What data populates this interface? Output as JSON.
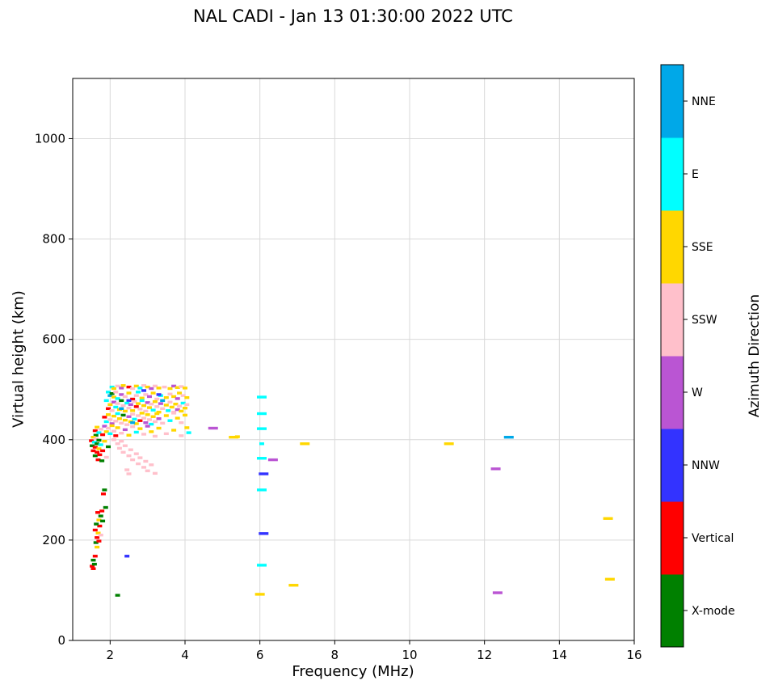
{
  "chart": {
    "title": "NAL CADI - Jan 13 01:30:00 2022 UTC",
    "xlabel": "Frequency (MHz)",
    "ylabel": "Virtual height (km)",
    "colorbar_label": "Azimuth Direction"
  },
  "chart_data": {
    "type": "scatter",
    "title": "NAL CADI - Jan 13 01:30:00 2022 UTC",
    "xlabel": "Frequency (MHz)",
    "ylabel": "Virtual height (km)",
    "xlim": [
      1,
      16
    ],
    "ylim": [
      0,
      1120
    ],
    "xticks": [
      2,
      4,
      6,
      8,
      10,
      12,
      14,
      16
    ],
    "yticks": [
      0,
      200,
      400,
      600,
      800,
      1000
    ],
    "grid": true,
    "grid_color": "#d9d9d9",
    "legend": {
      "type": "colorbar",
      "position": "right",
      "title": "Azimuth Direction"
    },
    "directions": [
      {
        "name": "X-mode",
        "color": "#008000"
      },
      {
        "name": "Vertical",
        "color": "#ff0000"
      },
      {
        "name": "NNW",
        "color": "#3333ff"
      },
      {
        "name": "W",
        "color": "#ba55d3"
      },
      {
        "name": "SSW",
        "color": "#ffc0cb"
      },
      {
        "name": "SSE",
        "color": "#ffd700"
      },
      {
        "name": "E",
        "color": "#00ffff"
      },
      {
        "name": "NNE",
        "color": "#00a8e8"
      }
    ],
    "points_format": [
      "freq_MHz",
      "height_km",
      "dir_index",
      "wide_dash"
    ],
    "points": [
      [
        2.05,
        505,
        6
      ],
      [
        2.1,
        502,
        5
      ],
      [
        2.2,
        507,
        4
      ],
      [
        2.3,
        503,
        3
      ],
      [
        2.35,
        508,
        5
      ],
      [
        2.5,
        505,
        1
      ],
      [
        2.6,
        502,
        4
      ],
      [
        2.7,
        507,
        5
      ],
      [
        2.8,
        503,
        6
      ],
      [
        2.9,
        508,
        4
      ],
      [
        3.0,
        505,
        5
      ],
      [
        3.1,
        502,
        3
      ],
      [
        3.2,
        507,
        4
      ],
      [
        3.3,
        503,
        5
      ],
      [
        3.45,
        505,
        4
      ],
      [
        3.6,
        502,
        5
      ],
      [
        3.7,
        507,
        3
      ],
      [
        3.8,
        504,
        5
      ],
      [
        3.9,
        506,
        4
      ],
      [
        4.0,
        503,
        5
      ],
      [
        1.95,
        495,
        6
      ],
      [
        2.0,
        488,
        7
      ],
      [
        2.05,
        492,
        0
      ],
      [
        2.1,
        485,
        5
      ],
      [
        2.15,
        495,
        4
      ],
      [
        2.2,
        482,
        6
      ],
      [
        2.3,
        490,
        3
      ],
      [
        2.4,
        486,
        4
      ],
      [
        2.5,
        493,
        5
      ],
      [
        2.6,
        481,
        1
      ],
      [
        2.7,
        488,
        4
      ],
      [
        2.75,
        495,
        6
      ],
      [
        2.85,
        483,
        5
      ],
      [
        2.95,
        490,
        4
      ],
      [
        3.05,
        486,
        3
      ],
      [
        3.15,
        493,
        5
      ],
      [
        3.25,
        481,
        4
      ],
      [
        3.35,
        488,
        6
      ],
      [
        3.5,
        484,
        5
      ],
      [
        3.6,
        491,
        4
      ],
      [
        3.7,
        486,
        5
      ],
      [
        3.8,
        482,
        3
      ],
      [
        3.85,
        493,
        5
      ],
      [
        3.95,
        488,
        4
      ],
      [
        4.05,
        484,
        5
      ],
      [
        2.5,
        478,
        2
      ],
      [
        3.3,
        490,
        2
      ],
      [
        2.9,
        498,
        2
      ],
      [
        1.9,
        478,
        6
      ],
      [
        1.95,
        462,
        1
      ],
      [
        2.0,
        470,
        5
      ],
      [
        2.05,
        458,
        4
      ],
      [
        2.1,
        475,
        3
      ],
      [
        2.15,
        465,
        6
      ],
      [
        2.2,
        472,
        4
      ],
      [
        2.25,
        460,
        5
      ],
      [
        2.3,
        478,
        0
      ],
      [
        2.35,
        468,
        4
      ],
      [
        2.4,
        457,
        5
      ],
      [
        2.45,
        473,
        6
      ],
      [
        2.5,
        463,
        4
      ],
      [
        2.55,
        470,
        3
      ],
      [
        2.6,
        458,
        5
      ],
      [
        2.65,
        476,
        4
      ],
      [
        2.7,
        466,
        1
      ],
      [
        2.75,
        472,
        5
      ],
      [
        2.8,
        461,
        4
      ],
      [
        2.85,
        478,
        6
      ],
      [
        2.9,
        468,
        5
      ],
      [
        2.95,
        457,
        4
      ],
      [
        3.0,
        474,
        3
      ],
      [
        3.05,
        464,
        5
      ],
      [
        3.1,
        471,
        4
      ],
      [
        3.15,
        459,
        6
      ],
      [
        3.2,
        476,
        5
      ],
      [
        3.25,
        466,
        4
      ],
      [
        3.3,
        455,
        5
      ],
      [
        3.35,
        472,
        3
      ],
      [
        3.4,
        462,
        4
      ],
      [
        3.5,
        469,
        5
      ],
      [
        3.55,
        458,
        6
      ],
      [
        3.6,
        475,
        4
      ],
      [
        3.65,
        465,
        5
      ],
      [
        3.7,
        455,
        4
      ],
      [
        3.75,
        471,
        5
      ],
      [
        3.8,
        460,
        3
      ],
      [
        3.85,
        467,
        4
      ],
      [
        3.9,
        457,
        5
      ],
      [
        3.95,
        473,
        6
      ],
      [
        4.0,
        463,
        5
      ],
      [
        4.05,
        470,
        4
      ],
      [
        2.3,
        462,
        7
      ],
      [
        3.4,
        478,
        7
      ],
      [
        1.85,
        445,
        1
      ],
      [
        1.9,
        436,
        6
      ],
      [
        1.95,
        450,
        5
      ],
      [
        2.0,
        440,
        4
      ],
      [
        2.05,
        432,
        3
      ],
      [
        2.1,
        447,
        5
      ],
      [
        2.15,
        437,
        4
      ],
      [
        2.2,
        452,
        6
      ],
      [
        2.25,
        442,
        5
      ],
      [
        2.3,
        433,
        4
      ],
      [
        2.35,
        449,
        0
      ],
      [
        2.4,
        439,
        5
      ],
      [
        2.45,
        430,
        4
      ],
      [
        2.5,
        446,
        3
      ],
      [
        2.55,
        436,
        5
      ],
      [
        2.6,
        451,
        4
      ],
      [
        2.65,
        441,
        6
      ],
      [
        2.7,
        432,
        5
      ],
      [
        2.75,
        448,
        4
      ],
      [
        2.8,
        438,
        1
      ],
      [
        2.85,
        453,
        5
      ],
      [
        2.9,
        443,
        4
      ],
      [
        2.95,
        434,
        3
      ],
      [
        3.0,
        450,
        5
      ],
      [
        3.05,
        440,
        4
      ],
      [
        3.1,
        431,
        6
      ],
      [
        3.15,
        446,
        5
      ],
      [
        3.2,
        436,
        4
      ],
      [
        3.25,
        452,
        5
      ],
      [
        3.3,
        442,
        3
      ],
      [
        3.4,
        433,
        4
      ],
      [
        3.5,
        448,
        5
      ],
      [
        3.6,
        438,
        6
      ],
      [
        3.7,
        453,
        4
      ],
      [
        3.8,
        443,
        5
      ],
      [
        3.9,
        434,
        4
      ],
      [
        4.0,
        449,
        5
      ],
      [
        2.6,
        434,
        7
      ],
      [
        1.6,
        418,
        1
      ],
      [
        1.62,
        409,
        0
      ],
      [
        1.65,
        425,
        5
      ],
      [
        1.7,
        414,
        6
      ],
      [
        1.75,
        421,
        4
      ],
      [
        1.8,
        410,
        1
      ],
      [
        1.85,
        427,
        3
      ],
      [
        1.9,
        416,
        5
      ],
      [
        1.95,
        423,
        4
      ],
      [
        2.0,
        412,
        6
      ],
      [
        2.05,
        428,
        5
      ],
      [
        2.1,
        417,
        4
      ],
      [
        2.15,
        408,
        1
      ],
      [
        2.2,
        424,
        5
      ],
      [
        2.3,
        413,
        4
      ],
      [
        2.4,
        420,
        3
      ],
      [
        2.5,
        409,
        5
      ],
      [
        2.6,
        426,
        4
      ],
      [
        2.7,
        415,
        6
      ],
      [
        2.8,
        422,
        5
      ],
      [
        2.9,
        411,
        4
      ],
      [
        3.0,
        427,
        3
      ],
      [
        3.1,
        416,
        5
      ],
      [
        3.2,
        407,
        4
      ],
      [
        3.3,
        423,
        5
      ],
      [
        3.5,
        412,
        4
      ],
      [
        3.7,
        419,
        5
      ],
      [
        3.9,
        408,
        4
      ],
      [
        4.05,
        424,
        5
      ],
      [
        4.1,
        414,
        6
      ],
      [
        1.5,
        398,
        1
      ],
      [
        1.52,
        388,
        0
      ],
      [
        1.55,
        405,
        5
      ],
      [
        1.55,
        378,
        1
      ],
      [
        1.58,
        395,
        6
      ],
      [
        1.6,
        368,
        0
      ],
      [
        1.6,
        385,
        1
      ],
      [
        1.62,
        402,
        4
      ],
      [
        1.65,
        375,
        1
      ],
      [
        1.65,
        392,
        0
      ],
      [
        1.68,
        360,
        1
      ],
      [
        1.7,
        382,
        5
      ],
      [
        1.7,
        399,
        0
      ],
      [
        1.72,
        370,
        1
      ],
      [
        1.75,
        390,
        6
      ],
      [
        1.78,
        358,
        0
      ],
      [
        1.8,
        378,
        1
      ],
      [
        1.85,
        397,
        5
      ],
      [
        1.9,
        365,
        4
      ],
      [
        1.95,
        386,
        0
      ],
      [
        2.1,
        400,
        4
      ],
      [
        2.2,
        392,
        4
      ],
      [
        2.25,
        383,
        4
      ],
      [
        2.3,
        397,
        4
      ],
      [
        2.35,
        375,
        4
      ],
      [
        2.4,
        388,
        4
      ],
      [
        2.5,
        368,
        4
      ],
      [
        2.55,
        380,
        4
      ],
      [
        2.6,
        360,
        4
      ],
      [
        2.7,
        372,
        4
      ],
      [
        2.75,
        352,
        4
      ],
      [
        2.8,
        364,
        4
      ],
      [
        2.9,
        345,
        4
      ],
      [
        2.95,
        357,
        4
      ],
      [
        3.0,
        338,
        4
      ],
      [
        3.1,
        350,
        4
      ],
      [
        3.2,
        333,
        4
      ],
      [
        2.45,
        340,
        4
      ],
      [
        2.5,
        332,
        4
      ],
      [
        1.52,
        148,
        1
      ],
      [
        1.55,
        160,
        0
      ],
      [
        1.55,
        143,
        1
      ],
      [
        1.58,
        152,
        0
      ],
      [
        1.6,
        168,
        1
      ],
      [
        1.62,
        195,
        0
      ],
      [
        1.65,
        205,
        1
      ],
      [
        1.65,
        186,
        5
      ],
      [
        1.68,
        214,
        5
      ],
      [
        1.7,
        198,
        1
      ],
      [
        1.7,
        240,
        5
      ],
      [
        1.72,
        228,
        1
      ],
      [
        1.75,
        248,
        0
      ],
      [
        1.75,
        210,
        4
      ],
      [
        1.78,
        258,
        1
      ],
      [
        1.8,
        238,
        0
      ],
      [
        1.82,
        292,
        1
      ],
      [
        1.85,
        300,
        0
      ],
      [
        1.88,
        265,
        0
      ],
      [
        1.6,
        220,
        1
      ],
      [
        1.63,
        232,
        0
      ],
      [
        1.67,
        255,
        1
      ],
      [
        2.45,
        168,
        2
      ],
      [
        2.2,
        90,
        0
      ],
      [
        4.75,
        423,
        3,
        1
      ],
      [
        5.3,
        405,
        5,
        1
      ],
      [
        5.4,
        406,
        5
      ],
      [
        6.05,
        485,
        6,
        1
      ],
      [
        6.05,
        452,
        6,
        1
      ],
      [
        6.05,
        422,
        6,
        1
      ],
      [
        6.05,
        392,
        6
      ],
      [
        6.05,
        363,
        6,
        1
      ],
      [
        6.05,
        300,
        6,
        1
      ],
      [
        6.05,
        150,
        6,
        1
      ],
      [
        6.1,
        213,
        2,
        1
      ],
      [
        6.1,
        332,
        2,
        1
      ],
      [
        6.0,
        92,
        5,
        1
      ],
      [
        6.35,
        360,
        3,
        1
      ],
      [
        6.9,
        110,
        5,
        1
      ],
      [
        7.2,
        392,
        5,
        1
      ],
      [
        11.05,
        392,
        5,
        1
      ],
      [
        12.3,
        342,
        3,
        1
      ],
      [
        12.35,
        95,
        3,
        1
      ],
      [
        12.65,
        405,
        7,
        1
      ],
      [
        15.3,
        243,
        5,
        1
      ],
      [
        15.35,
        122,
        5,
        1
      ]
    ]
  }
}
